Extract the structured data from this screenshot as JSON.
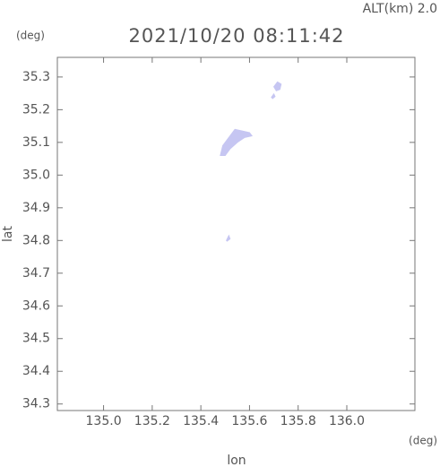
{
  "chart_data": {
    "type": "area",
    "title": "2021/10/20 08:11:42",
    "subtitle": "ALT(km) 2.0",
    "y_unit": "(deg)",
    "x_unit": "(deg)",
    "xlabel": "lon",
    "ylabel": "lat",
    "xlim": [
      134.81,
      136.28
    ],
    "ylim": [
      34.28,
      35.36
    ],
    "xticks": [
      {
        "value": 135,
        "label": "135.0"
      },
      135.2,
      135.4,
      135.6,
      135.8,
      {
        "value": 136,
        "label": "136.0"
      }
    ],
    "yticks": [
      34.3,
      34.4,
      34.5,
      34.6,
      34.7,
      34.8,
      34.9,
      {
        "value": 35,
        "label": "35.0"
      },
      35.1,
      35.2,
      35.3
    ],
    "series": [
      {
        "color": "#c6c6f2",
        "x": [
          135.48,
          135.49,
          135.52,
          135.54,
          135.57,
          135.6,
          135.61,
          135.58,
          135.55,
          135.52,
          135.5
        ],
        "values": [
          35.06,
          35.09,
          35.12,
          35.14,
          35.135,
          35.13,
          35.12,
          35.115,
          35.1,
          35.08,
          35.06
        ]
      },
      {
        "color": "#c6c6f2",
        "x": [
          135.7,
          135.715,
          135.73,
          135.725,
          135.71
        ],
        "values": [
          35.27,
          35.285,
          35.278,
          35.262,
          35.258
        ]
      },
      {
        "color": "#c6c6f2",
        "x": [
          135.69,
          135.7,
          135.705,
          135.695
        ],
        "values": [
          35.238,
          35.248,
          35.24,
          35.234
        ]
      },
      {
        "color": "#c6c6f2",
        "x": [
          135.505,
          135.515,
          135.52,
          135.508
        ],
        "values": [
          34.8,
          34.815,
          34.805,
          34.798
        ]
      }
    ]
  }
}
